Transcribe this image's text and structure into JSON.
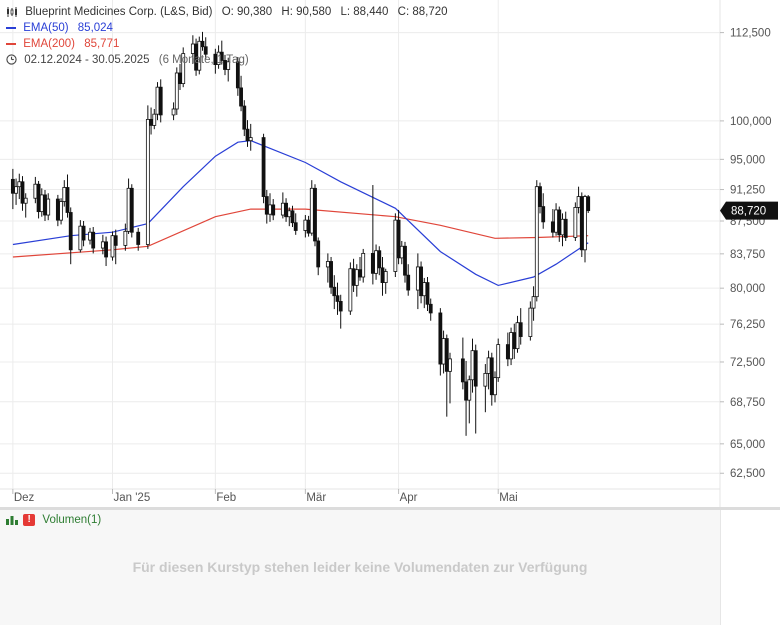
{
  "header": {
    "instrument": "Blueprint Medicines Corp. (L&S, Bid)",
    "ohlc": {
      "open": "O: 90,380",
      "high": "H: 90,580",
      "low": "L: 88,440",
      "close": "C: 88,720"
    },
    "ema50": {
      "label": "EMA(50)",
      "value": "85,024",
      "color": "#2a3fd6"
    },
    "ema200": {
      "label": "EMA(200)",
      "value": "85,771",
      "color": "#e0463a"
    },
    "range": {
      "dates": "02.12.2024 - 30.05.2025",
      "detail": "(6 Monate, 1 Tag)"
    }
  },
  "last_price_tag": "88,720",
  "volume": {
    "label": "Volumen(1)",
    "message": "Für diesen Kurstyp stehen leider keine Volumendaten zur Verfügung"
  },
  "chart_data": {
    "type": "candlestick",
    "y_tick_labels": [
      "112,500",
      "100,000",
      "95,000",
      "91,250",
      "87,500",
      "83,750",
      "80,000",
      "76,250",
      "72,500",
      "68,750",
      "65,000",
      "62,500"
    ],
    "y_ticks": [
      112.5,
      100,
      95,
      91.25,
      87.5,
      83.75,
      80,
      76.25,
      72.5,
      68.75,
      65,
      62.5
    ],
    "y_scale": "log",
    "y_range": [
      61.2,
      117.5
    ],
    "x_labels": [
      {
        "label": "Dez",
        "date": "2024-12-02"
      },
      {
        "label": "Jan '25",
        "date": "2025-01-02"
      },
      {
        "label": "Feb",
        "date": "2025-02-03"
      },
      {
        "label": "Mär",
        "date": "2025-03-03"
      },
      {
        "label": "Apr",
        "date": "2025-04-01"
      },
      {
        "label": "Mai",
        "date": "2025-05-02"
      }
    ],
    "candles": [
      {
        "date": "2024-12-02",
        "o": 92.5,
        "h": 93.8,
        "l": 88.9,
        "c": 90.8
      },
      {
        "date": "2024-12-03",
        "o": 90.8,
        "h": 92.6,
        "l": 89.4,
        "c": 91.6
      },
      {
        "date": "2024-12-04",
        "o": 91.6,
        "h": 93.2,
        "l": 90.1,
        "c": 92.2
      },
      {
        "date": "2024-12-05",
        "o": 92.2,
        "h": 92.9,
        "l": 88.7,
        "c": 89.6
      },
      {
        "date": "2024-12-06",
        "o": 89.6,
        "h": 90.8,
        "l": 87.9,
        "c": 90.2
      },
      {
        "date": "2024-12-09",
        "o": 90.2,
        "h": 92.8,
        "l": 89.6,
        "c": 91.9
      },
      {
        "date": "2024-12-10",
        "o": 91.9,
        "h": 92.3,
        "l": 87.8,
        "c": 88.6
      },
      {
        "date": "2024-12-11",
        "o": 88.6,
        "h": 91.4,
        "l": 88.0,
        "c": 90.6
      },
      {
        "date": "2024-12-12",
        "o": 90.6,
        "h": 91.2,
        "l": 87.5,
        "c": 88.2
      },
      {
        "date": "2024-12-13",
        "o": 88.2,
        "h": 90.8,
        "l": 87.6,
        "c": 90.1
      },
      {
        "date": "2024-12-16",
        "o": 90.1,
        "h": 90.6,
        "l": 86.9,
        "c": 87.6
      },
      {
        "date": "2024-12-17",
        "o": 87.6,
        "h": 90.2,
        "l": 87.1,
        "c": 89.8
      },
      {
        "date": "2024-12-18",
        "o": 89.8,
        "h": 92.4,
        "l": 89.2,
        "c": 91.5
      },
      {
        "date": "2024-12-19",
        "o": 91.5,
        "h": 93.1,
        "l": 87.9,
        "c": 88.5
      },
      {
        "date": "2024-12-20",
        "o": 88.5,
        "h": 89.1,
        "l": 82.6,
        "c": 84.2
      },
      {
        "date": "2024-12-23",
        "o": 84.2,
        "h": 87.6,
        "l": 83.9,
        "c": 86.9
      },
      {
        "date": "2024-12-24",
        "o": 86.9,
        "h": 87.5,
        "l": 84.6,
        "c": 85.3
      },
      {
        "date": "2024-12-26",
        "o": 85.3,
        "h": 86.7,
        "l": 84.8,
        "c": 86.2
      },
      {
        "date": "2024-12-27",
        "o": 86.2,
        "h": 86.8,
        "l": 83.8,
        "c": 84.4
      },
      {
        "date": "2024-12-30",
        "o": 84.4,
        "h": 85.9,
        "l": 83.7,
        "c": 85.1
      },
      {
        "date": "2024-12-31",
        "o": 85.1,
        "h": 85.7,
        "l": 82.4,
        "c": 83.4
      },
      {
        "date": "2025-01-02",
        "o": 83.4,
        "h": 86.3,
        "l": 83.0,
        "c": 85.8
      },
      {
        "date": "2025-01-03",
        "o": 85.8,
        "h": 86.5,
        "l": 82.6,
        "c": 84.7
      },
      {
        "date": "2025-01-06",
        "o": 84.7,
        "h": 87.2,
        "l": 84.1,
        "c": 86.3
      },
      {
        "date": "2025-01-07",
        "o": 86.3,
        "h": 92.6,
        "l": 86.0,
        "c": 91.4
      },
      {
        "date": "2025-01-08",
        "o": 91.4,
        "h": 91.9,
        "l": 85.6,
        "c": 86.2
      },
      {
        "date": "2025-01-10",
        "o": 86.2,
        "h": 86.7,
        "l": 84.1,
        "c": 84.8
      },
      {
        "date": "2025-01-13",
        "o": 84.8,
        "h": 102.1,
        "l": 84.3,
        "c": 100.2
      },
      {
        "date": "2025-01-14",
        "o": 100.2,
        "h": 101.8,
        "l": 98.2,
        "c": 99.4
      },
      {
        "date": "2025-01-15",
        "o": 99.4,
        "h": 101.6,
        "l": 98.9,
        "c": 100.9
      },
      {
        "date": "2025-01-16",
        "o": 100.9,
        "h": 105.3,
        "l": 100.1,
        "c": 104.6
      },
      {
        "date": "2025-01-17",
        "o": 104.6,
        "h": 105.7,
        "l": 99.8,
        "c": 100.8
      },
      {
        "date": "2025-01-21",
        "o": 100.8,
        "h": 102.5,
        "l": 100.1,
        "c": 101.6
      },
      {
        "date": "2025-01-22",
        "o": 101.6,
        "h": 107.4,
        "l": 100.8,
        "c": 106.6
      },
      {
        "date": "2025-01-23",
        "o": 106.6,
        "h": 107.9,
        "l": 104.2,
        "c": 105.1
      },
      {
        "date": "2025-01-24",
        "o": 105.1,
        "h": 110.3,
        "l": 104.6,
        "c": 109.4
      },
      {
        "date": "2025-01-27",
        "o": 109.4,
        "h": 112.1,
        "l": 107.9,
        "c": 110.8
      },
      {
        "date": "2025-01-28",
        "o": 110.8,
        "h": 111.6,
        "l": 106.2,
        "c": 107.0
      },
      {
        "date": "2025-01-29",
        "o": 107.0,
        "h": 111.9,
        "l": 106.4,
        "c": 111.2
      },
      {
        "date": "2025-01-30",
        "o": 111.2,
        "h": 112.6,
        "l": 109.8,
        "c": 110.4
      },
      {
        "date": "2025-01-31",
        "o": 110.4,
        "h": 111.8,
        "l": 108.6,
        "c": 109.3
      },
      {
        "date": "2025-02-03",
        "o": 109.3,
        "h": 110.1,
        "l": 106.5,
        "c": 107.8
      },
      {
        "date": "2025-02-04",
        "o": 107.8,
        "h": 110.6,
        "l": 107.2,
        "c": 109.6
      },
      {
        "date": "2025-02-05",
        "o": 109.6,
        "h": 111.3,
        "l": 107.8,
        "c": 108.4
      },
      {
        "date": "2025-02-06",
        "o": 108.4,
        "h": 109.2,
        "l": 106.3,
        "c": 107.1
      },
      {
        "date": "2025-02-07",
        "o": 107.1,
        "h": 108.8,
        "l": 105.4,
        "c": 108.2
      },
      {
        "date": "2025-02-10",
        "o": 108.2,
        "h": 108.9,
        "l": 103.4,
        "c": 104.5
      },
      {
        "date": "2025-02-11",
        "o": 104.5,
        "h": 106.2,
        "l": 101.3,
        "c": 102.0
      },
      {
        "date": "2025-02-12",
        "o": 102.0,
        "h": 102.8,
        "l": 98.0,
        "c": 98.9
      },
      {
        "date": "2025-02-13",
        "o": 98.9,
        "h": 100.1,
        "l": 96.6,
        "c": 97.4
      },
      {
        "date": "2025-02-14",
        "o": 97.4,
        "h": 99.6,
        "l": 96.1,
        "c": 97.8
      },
      {
        "date": "2025-02-18",
        "o": 97.8,
        "h": 98.3,
        "l": 89.6,
        "c": 90.4
      },
      {
        "date": "2025-02-19",
        "o": 90.4,
        "h": 91.2,
        "l": 87.2,
        "c": 88.3
      },
      {
        "date": "2025-02-20",
        "o": 88.3,
        "h": 90.8,
        "l": 87.4,
        "c": 89.4
      },
      {
        "date": "2025-02-21",
        "o": 89.4,
        "h": 90.1,
        "l": 87.6,
        "c": 88.2
      },
      {
        "date": "2025-02-24",
        "o": 88.2,
        "h": 90.9,
        "l": 87.8,
        "c": 89.6
      },
      {
        "date": "2025-02-25",
        "o": 89.6,
        "h": 90.2,
        "l": 87.4,
        "c": 88.0
      },
      {
        "date": "2025-02-26",
        "o": 88.0,
        "h": 89.1,
        "l": 86.9,
        "c": 88.7
      },
      {
        "date": "2025-02-27",
        "o": 88.7,
        "h": 89.3,
        "l": 86.8,
        "c": 87.3
      },
      {
        "date": "2025-02-28",
        "o": 87.3,
        "h": 88.4,
        "l": 85.9,
        "c": 86.4
      },
      {
        "date": "2025-03-03",
        "o": 86.4,
        "h": 88.2,
        "l": 85.6,
        "c": 87.6
      },
      {
        "date": "2025-03-04",
        "o": 87.6,
        "h": 88.1,
        "l": 85.7,
        "c": 86.1
      },
      {
        "date": "2025-03-05",
        "o": 86.1,
        "h": 92.4,
        "l": 85.8,
        "c": 91.4
      },
      {
        "date": "2025-03-06",
        "o": 91.4,
        "h": 91.9,
        "l": 84.6,
        "c": 85.2
      },
      {
        "date": "2025-03-07",
        "o": 85.2,
        "h": 85.6,
        "l": 81.4,
        "c": 82.3
      },
      {
        "date": "2025-03-10",
        "o": 82.3,
        "h": 83.8,
        "l": 80.6,
        "c": 82.9
      },
      {
        "date": "2025-03-11",
        "o": 82.9,
        "h": 83.4,
        "l": 79.4,
        "c": 80.1
      },
      {
        "date": "2025-03-12",
        "o": 80.1,
        "h": 81.4,
        "l": 77.8,
        "c": 79.2
      },
      {
        "date": "2025-03-13",
        "o": 79.2,
        "h": 80.6,
        "l": 77.2,
        "c": 78.6
      },
      {
        "date": "2025-03-14",
        "o": 78.6,
        "h": 79.3,
        "l": 75.8,
        "c": 77.6
      },
      {
        "date": "2025-03-17",
        "o": 77.6,
        "h": 82.8,
        "l": 77.2,
        "c": 82.1
      },
      {
        "date": "2025-03-18",
        "o": 82.1,
        "h": 83.2,
        "l": 79.6,
        "c": 80.3
      },
      {
        "date": "2025-03-19",
        "o": 80.3,
        "h": 82.6,
        "l": 79.1,
        "c": 82.0
      },
      {
        "date": "2025-03-20",
        "o": 82.0,
        "h": 83.4,
        "l": 80.8,
        "c": 81.2
      },
      {
        "date": "2025-03-21",
        "o": 81.2,
        "h": 84.3,
        "l": 80.6,
        "c": 83.8
      },
      {
        "date": "2025-03-24",
        "o": 83.8,
        "h": 91.8,
        "l": 80.4,
        "c": 81.6
      },
      {
        "date": "2025-03-25",
        "o": 81.6,
        "h": 84.8,
        "l": 80.9,
        "c": 84.1
      },
      {
        "date": "2025-03-26",
        "o": 84.1,
        "h": 84.6,
        "l": 81.4,
        "c": 82.2
      },
      {
        "date": "2025-03-27",
        "o": 82.2,
        "h": 83.4,
        "l": 79.2,
        "c": 80.6
      },
      {
        "date": "2025-03-28",
        "o": 80.6,
        "h": 82.1,
        "l": 79.4,
        "c": 81.8
      },
      {
        "date": "2025-03-31",
        "o": 81.8,
        "h": 88.4,
        "l": 81.2,
        "c": 87.6
      },
      {
        "date": "2025-04-01",
        "o": 87.6,
        "h": 88.8,
        "l": 82.6,
        "c": 83.3
      },
      {
        "date": "2025-04-02",
        "o": 83.3,
        "h": 85.2,
        "l": 82.6,
        "c": 84.6
      },
      {
        "date": "2025-04-03",
        "o": 84.6,
        "h": 85.1,
        "l": 80.6,
        "c": 81.4
      },
      {
        "date": "2025-04-04",
        "o": 81.4,
        "h": 82.6,
        "l": 79.2,
        "c": 79.8
      },
      {
        "date": "2025-04-07",
        "o": 79.8,
        "h": 83.8,
        "l": 77.8,
        "c": 82.3
      },
      {
        "date": "2025-04-08",
        "o": 82.3,
        "h": 82.9,
        "l": 78.4,
        "c": 79.2
      },
      {
        "date": "2025-04-09",
        "o": 79.2,
        "h": 81.1,
        "l": 77.9,
        "c": 80.6
      },
      {
        "date": "2025-04-10",
        "o": 80.6,
        "h": 81.2,
        "l": 77.6,
        "c": 78.3
      },
      {
        "date": "2025-04-11",
        "o": 78.3,
        "h": 78.9,
        "l": 76.6,
        "c": 77.4
      },
      {
        "date": "2025-04-14",
        "o": 77.4,
        "h": 77.9,
        "l": 71.2,
        "c": 72.3
      },
      {
        "date": "2025-04-15",
        "o": 72.3,
        "h": 75.6,
        "l": 71.4,
        "c": 74.8
      },
      {
        "date": "2025-04-16",
        "o": 74.8,
        "h": 75.2,
        "l": 67.4,
        "c": 71.6
      },
      {
        "date": "2025-04-17",
        "o": 71.6,
        "h": 73.4,
        "l": 68.6,
        "c": 72.8
      },
      {
        "date": "2025-04-21",
        "o": 72.8,
        "h": 74.9,
        "l": 69.9,
        "c": 70.6
      },
      {
        "date": "2025-04-22",
        "o": 70.6,
        "h": 72.6,
        "l": 65.7,
        "c": 68.9
      },
      {
        "date": "2025-04-23",
        "o": 68.9,
        "h": 71.2,
        "l": 66.8,
        "c": 70.8
      },
      {
        "date": "2025-04-24",
        "o": 70.8,
        "h": 74.8,
        "l": 69.6,
        "c": 73.6
      },
      {
        "date": "2025-04-25",
        "o": 73.6,
        "h": 74.2,
        "l": 65.9,
        "c": 70.2
      },
      {
        "date": "2025-04-28",
        "o": 70.2,
        "h": 72.3,
        "l": 67.8,
        "c": 71.4
      },
      {
        "date": "2025-04-29",
        "o": 71.4,
        "h": 73.6,
        "l": 69.9,
        "c": 72.9
      },
      {
        "date": "2025-04-30",
        "o": 72.9,
        "h": 73.4,
        "l": 68.4,
        "c": 69.4
      },
      {
        "date": "2025-05-01",
        "o": 69.4,
        "h": 71.6,
        "l": 68.7,
        "c": 71.0
      },
      {
        "date": "2025-05-02",
        "o": 71.0,
        "h": 74.8,
        "l": 70.6,
        "c": 74.2
      },
      {
        "date": "2025-05-05",
        "o": 74.2,
        "h": 75.4,
        "l": 72.1,
        "c": 72.8
      },
      {
        "date": "2025-05-06",
        "o": 72.8,
        "h": 75.9,
        "l": 72.2,
        "c": 75.4
      },
      {
        "date": "2025-05-07",
        "o": 75.4,
        "h": 76.3,
        "l": 72.8,
        "c": 73.8
      },
      {
        "date": "2025-05-08",
        "o": 73.8,
        "h": 77.1,
        "l": 73.4,
        "c": 76.4
      },
      {
        "date": "2025-05-09",
        "o": 76.4,
        "h": 77.9,
        "l": 74.2,
        "c": 75.0
      },
      {
        "date": "2025-05-12",
        "o": 75.0,
        "h": 78.6,
        "l": 74.6,
        "c": 77.9
      },
      {
        "date": "2025-05-13",
        "o": 77.9,
        "h": 80.2,
        "l": 76.6,
        "c": 79.1
      },
      {
        "date": "2025-05-14",
        "o": 79.1,
        "h": 92.4,
        "l": 78.6,
        "c": 91.6
      },
      {
        "date": "2025-05-15",
        "o": 91.6,
        "h": 92.1,
        "l": 88.4,
        "c": 89.2
      },
      {
        "date": "2025-05-16",
        "o": 89.2,
        "h": 90.8,
        "l": 86.6,
        "c": 87.4
      },
      {
        "date": "2025-05-19",
        "o": 87.4,
        "h": 88.9,
        "l": 85.6,
        "c": 86.2
      },
      {
        "date": "2025-05-20",
        "o": 86.2,
        "h": 89.6,
        "l": 85.8,
        "c": 88.8
      },
      {
        "date": "2025-05-21",
        "o": 88.8,
        "h": 89.2,
        "l": 85.1,
        "c": 85.9
      },
      {
        "date": "2025-05-22",
        "o": 85.9,
        "h": 88.4,
        "l": 84.6,
        "c": 87.7
      },
      {
        "date": "2025-05-23",
        "o": 87.7,
        "h": 88.6,
        "l": 85.2,
        "c": 85.6
      },
      {
        "date": "2025-05-26",
        "o": 85.6,
        "h": 89.7,
        "l": 85.2,
        "c": 89.1
      },
      {
        "date": "2025-05-27",
        "o": 89.1,
        "h": 91.6,
        "l": 88.4,
        "c": 90.4
      },
      {
        "date": "2025-05-28",
        "o": 90.4,
        "h": 90.9,
        "l": 83.4,
        "c": 84.2
      },
      {
        "date": "2025-05-29",
        "o": 84.2,
        "h": 90.6,
        "l": 82.8,
        "c": 90.4
      },
      {
        "date": "2025-05-30",
        "o": 90.38,
        "h": 90.58,
        "l": 88.44,
        "c": 88.72
      }
    ],
    "ema50": [
      {
        "date": "2024-12-02",
        "v": 84.8
      },
      {
        "date": "2024-12-20",
        "v": 85.8
      },
      {
        "date": "2025-01-02",
        "v": 86.2
      },
      {
        "date": "2025-01-13",
        "v": 87.2
      },
      {
        "date": "2025-01-24",
        "v": 91.6
      },
      {
        "date": "2025-02-03",
        "v": 95.4
      },
      {
        "date": "2025-02-10",
        "v": 97.2
      },
      {
        "date": "2025-02-14",
        "v": 97.4
      },
      {
        "date": "2025-03-03",
        "v": 94.6
      },
      {
        "date": "2025-03-14",
        "v": 92.2
      },
      {
        "date": "2025-03-31",
        "v": 89.0
      },
      {
        "date": "2025-04-14",
        "v": 84.0
      },
      {
        "date": "2025-04-25",
        "v": 81.5
      },
      {
        "date": "2025-05-02",
        "v": 80.3
      },
      {
        "date": "2025-05-13",
        "v": 81.2
      },
      {
        "date": "2025-05-20",
        "v": 82.6
      },
      {
        "date": "2025-05-30",
        "v": 85.0
      }
    ],
    "ema200": [
      {
        "date": "2024-12-02",
        "v": 83.4
      },
      {
        "date": "2025-01-02",
        "v": 84.2
      },
      {
        "date": "2025-01-13",
        "v": 84.6
      },
      {
        "date": "2025-02-03",
        "v": 88.0
      },
      {
        "date": "2025-02-14",
        "v": 88.9
      },
      {
        "date": "2025-03-03",
        "v": 88.9
      },
      {
        "date": "2025-03-31",
        "v": 88.0
      },
      {
        "date": "2025-04-14",
        "v": 87.0
      },
      {
        "date": "2025-05-01",
        "v": 85.5
      },
      {
        "date": "2025-05-14",
        "v": 85.6
      },
      {
        "date": "2025-05-30",
        "v": 85.8
      }
    ],
    "grid": true
  }
}
